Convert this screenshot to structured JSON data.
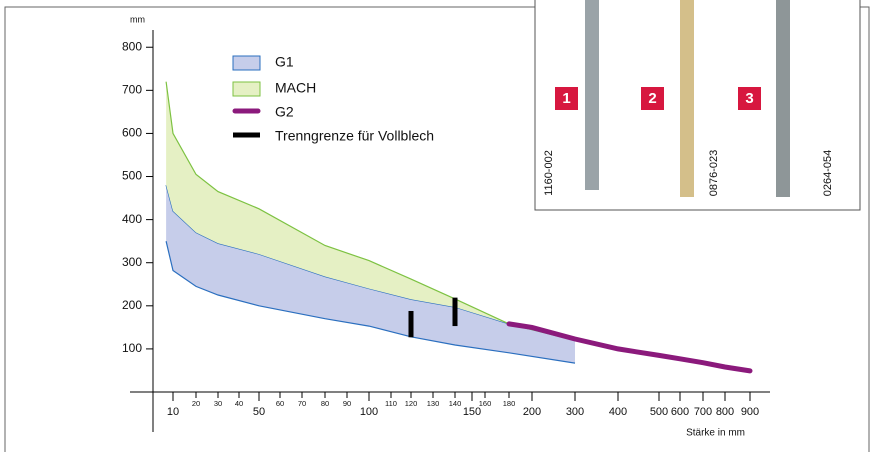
{
  "chart_data": {
    "type": "area",
    "y_unit_label": "mm",
    "xlabel": "Stärke in mm",
    "ylim": [
      0,
      840
    ],
    "yticks": [
      100,
      200,
      300,
      400,
      500,
      600,
      700,
      800
    ],
    "xticks": [
      10,
      50,
      100,
      150,
      200,
      300,
      400,
      500,
      600,
      700,
      800,
      900
    ],
    "xticks_minor": [
      20,
      30,
      40,
      60,
      70,
      80,
      90,
      110,
      120,
      130,
      140,
      160,
      180
    ],
    "x": [
      7,
      10,
      20,
      30,
      50,
      80,
      100,
      120,
      140,
      180,
      300
    ],
    "series": [
      {
        "name": "G1",
        "type": "area",
        "color": "#2b6fbf",
        "fill": "#c6cdea",
        "lower": [
          350,
          282,
          245,
          225,
          200,
          170,
          153,
          128,
          109,
          91,
          67
        ],
        "values": [
          480,
          420,
          370,
          345,
          320,
          268,
          240,
          215,
          197,
          158,
          120
        ]
      },
      {
        "name": "MACH",
        "type": "area",
        "color": "#7dc242",
        "fill": "#e5f0c4",
        "values": [
          720,
          600,
          505,
          465,
          425,
          340,
          305,
          262,
          216,
          158,
          120
        ]
      },
      {
        "name": "G2",
        "type": "line",
        "color": "#8b1a7c",
        "x": [
          180,
          200,
          300,
          400,
          500,
          600,
          700,
          800,
          900
        ],
        "values": [
          158,
          150,
          123,
          100,
          85,
          77,
          68,
          58,
          49
        ]
      },
      {
        "name": "Trenngrenze für Vollblech",
        "type": "marker",
        "color": "#000000",
        "x": [
          120,
          140
        ],
        "lower": [
          127,
          153
        ],
        "values": [
          188,
          219
        ]
      }
    ]
  },
  "inset": {
    "items": [
      {
        "number": "1",
        "code": "1160-002"
      },
      {
        "number": "2",
        "code": "0876-023"
      },
      {
        "number": "3",
        "code": "0264-054"
      }
    ]
  }
}
